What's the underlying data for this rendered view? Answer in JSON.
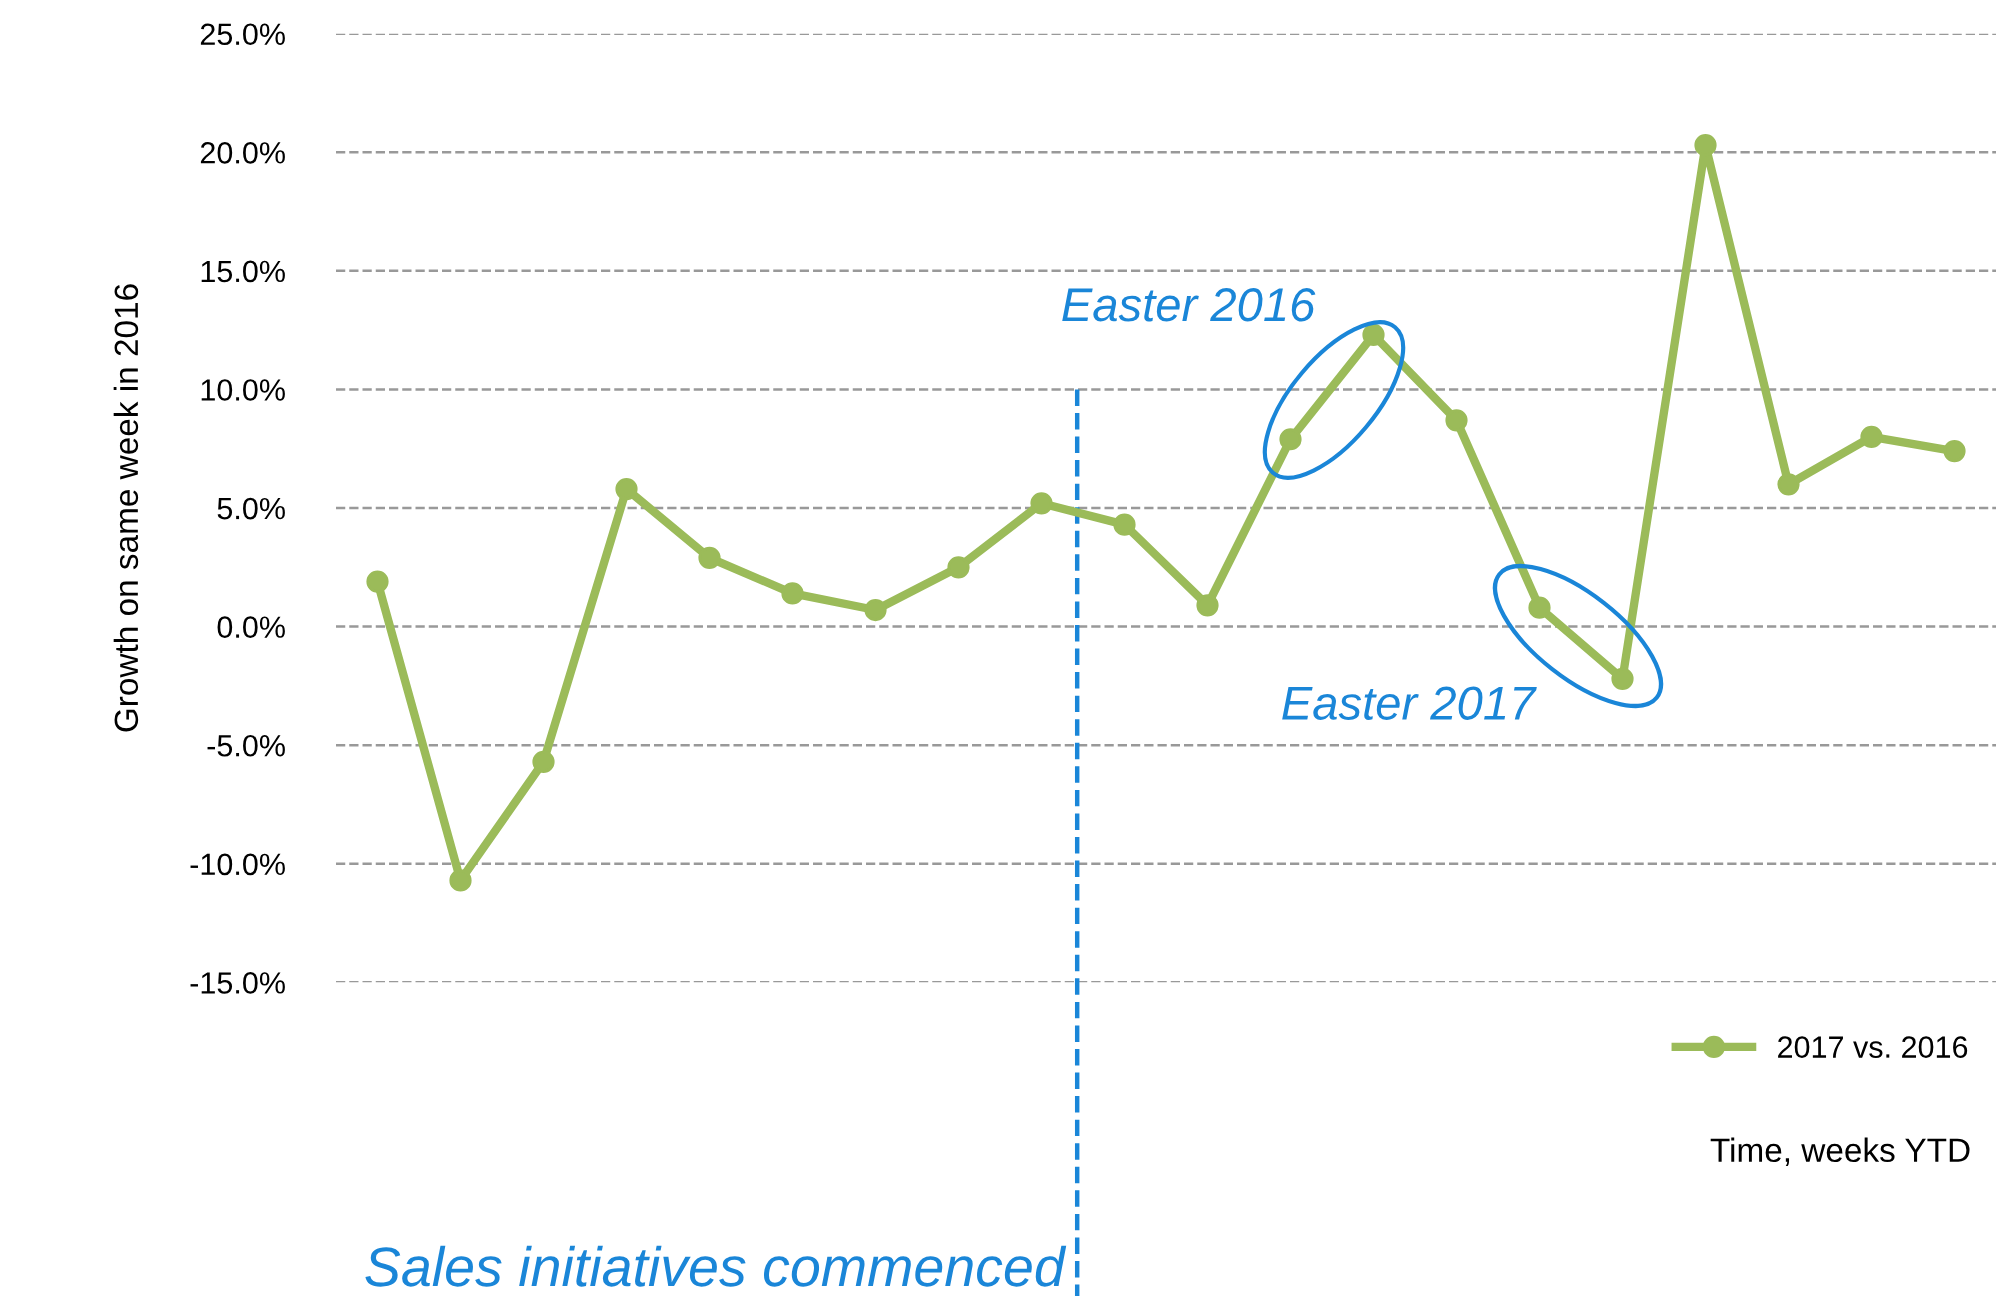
{
  "chart_data": {
    "type": "line",
    "ylabel": "Growth on same week in 2016",
    "categories": [
      null,
      null,
      null,
      null,
      null,
      null,
      null,
      null,
      null,
      null,
      null,
      null,
      null,
      null,
      null,
      null,
      null,
      null,
      null,
      null
    ],
    "series": [
      {
        "name": "2017 vs. 2016",
        "color": "#9bbb59",
        "values": [
          1.9,
          -10.7,
          -5.7,
          5.8,
          2.9,
          1.4,
          0.7,
          2.5,
          5.2,
          4.3,
          0.9,
          7.9,
          12.3,
          8.7,
          0.8,
          -2.2,
          20.3,
          6.0,
          8.0,
          7.4
        ]
      }
    ],
    "ylim": [
      -15,
      25
    ],
    "yticks": [
      {
        "value": -15,
        "label": "-15.0%"
      },
      {
        "value": -10,
        "label": "-10.0%"
      },
      {
        "value": -5,
        "label": "-5.0%"
      },
      {
        "value": 0,
        "label": "0.0%"
      },
      {
        "value": 5,
        "label": "5.0%"
      },
      {
        "value": 10,
        "label": "10.0%"
      },
      {
        "value": 15,
        "label": "15.0%"
      },
      {
        "value": 20,
        "label": "20.0%"
      },
      {
        "value": 25,
        "label": "25.0%"
      }
    ],
    "tick_labels": "y",
    "grid": "y",
    "legend": "bottom right",
    "marker": "circle",
    "line_style": "solid",
    "annotations": [
      "Easter 2016",
      "Easter 2017",
      "Sales initiatives commenced",
      "Time, weeks YTD"
    ]
  }
}
